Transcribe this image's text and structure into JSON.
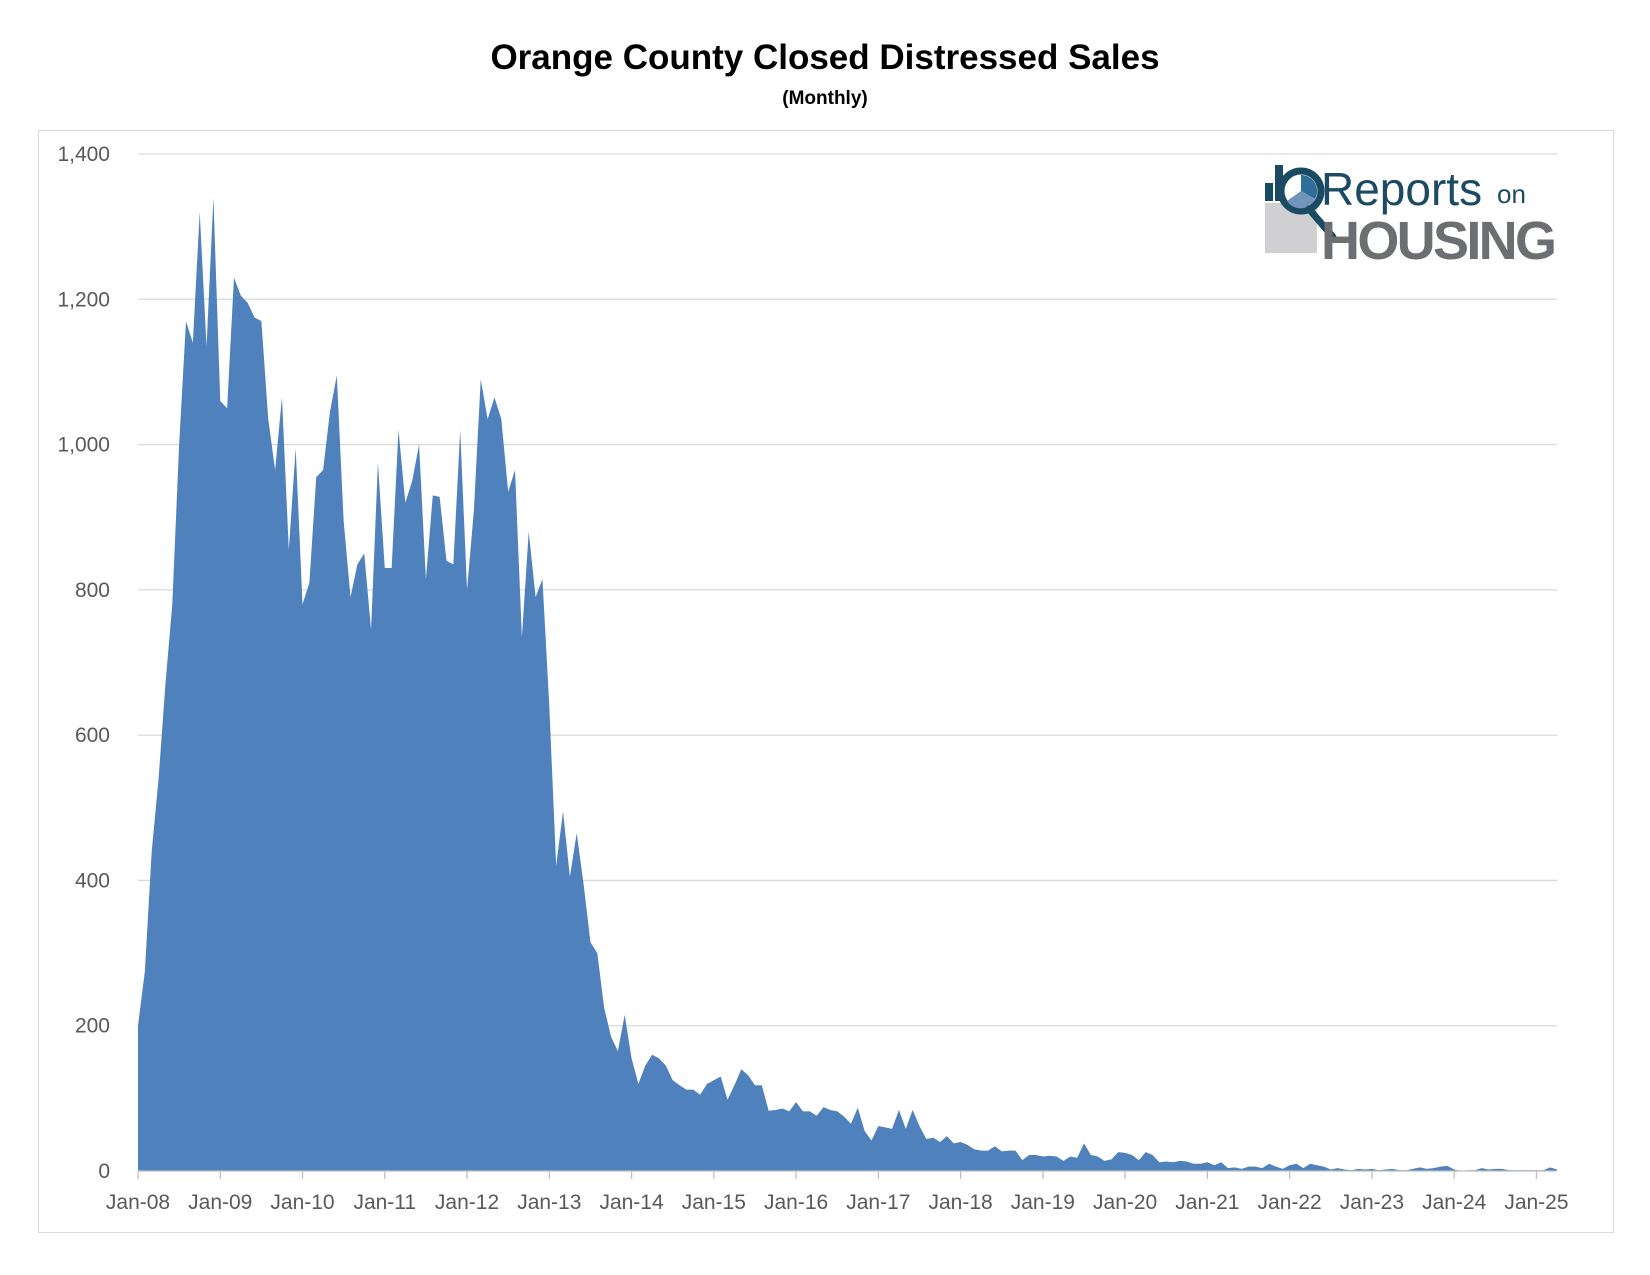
{
  "chart_data": {
    "type": "area",
    "title": "Orange County Closed Distressed Sales",
    "subtitle": "(Monthly)",
    "xlabel": "",
    "ylabel": "",
    "ylim": [
      0,
      1400
    ],
    "yticks": [
      0,
      200,
      400,
      600,
      800,
      1000,
      1200,
      1400
    ],
    "ytick_labels": [
      "0",
      "200",
      "400",
      "600",
      "800",
      "1,000",
      "1,200",
      "1,400"
    ],
    "xtick_labels": [
      "Jan-08",
      "Jan-09",
      "Jan-10",
      "Jan-11",
      "Jan-12",
      "Jan-13",
      "Jan-14",
      "Jan-15",
      "Jan-16",
      "Jan-17",
      "Jan-18",
      "Jan-19",
      "Jan-20",
      "Jan-21",
      "Jan-22",
      "Jan-23",
      "Jan-24",
      "Jan-25"
    ],
    "x_start": "Jan-08",
    "x_end": "Apr-25",
    "grid": true,
    "legend": "none",
    "series": [
      {
        "name": "Closed Distressed Sales",
        "color": "#4f81bd",
        "values": [
          200,
          275,
          440,
          540,
          670,
          780,
          1000,
          1170,
          1140,
          1320,
          1135,
          1340,
          1060,
          1050,
          1230,
          1205,
          1195,
          1175,
          1170,
          1035,
          965,
          1065,
          855,
          995,
          780,
          810,
          955,
          965,
          1045,
          1095,
          895,
          790,
          835,
          850,
          745,
          975,
          830,
          830,
          1020,
          920,
          950,
          1000,
          815,
          930,
          928,
          840,
          835,
          1020,
          800,
          910,
          1090,
          1035,
          1065,
          1035,
          935,
          965,
          735,
          880,
          790,
          815,
          640,
          420,
          495,
          405,
          465,
          395,
          315,
          300,
          225,
          185,
          165,
          215,
          155,
          120,
          145,
          160,
          155,
          145,
          125,
          118,
          112,
          112,
          105,
          120,
          125,
          130,
          98,
          118,
          140,
          132,
          118,
          118,
          83,
          84,
          86,
          82,
          95,
          82,
          82,
          76,
          88,
          84,
          82,
          75,
          65,
          87,
          55,
          42,
          62,
          60,
          58,
          84,
          58,
          84,
          62,
          44,
          46,
          40,
          48,
          38,
          40,
          36,
          30,
          28,
          28,
          34,
          27,
          28,
          28,
          15,
          22,
          22,
          20,
          21,
          20,
          14,
          20,
          18,
          38,
          22,
          20,
          14,
          16,
          26,
          25,
          22,
          15,
          26,
          22,
          12,
          13,
          12,
          14,
          13,
          10,
          10,
          12,
          8,
          12,
          4,
          5,
          3,
          6,
          6,
          4,
          10,
          6,
          3,
          8,
          10,
          4,
          10,
          8,
          6,
          2,
          4,
          2,
          1,
          3,
          2,
          3,
          1,
          2,
          3,
          1,
          1,
          3,
          5,
          3,
          4,
          6,
          7,
          2,
          0,
          1,
          1,
          4,
          2,
          3,
          3,
          1,
          1,
          1,
          1,
          1,
          1,
          5,
          2
        ]
      }
    ]
  },
  "logo": {
    "line1": "Reports",
    "line1_small": "on",
    "line2": "HOUSING"
  }
}
